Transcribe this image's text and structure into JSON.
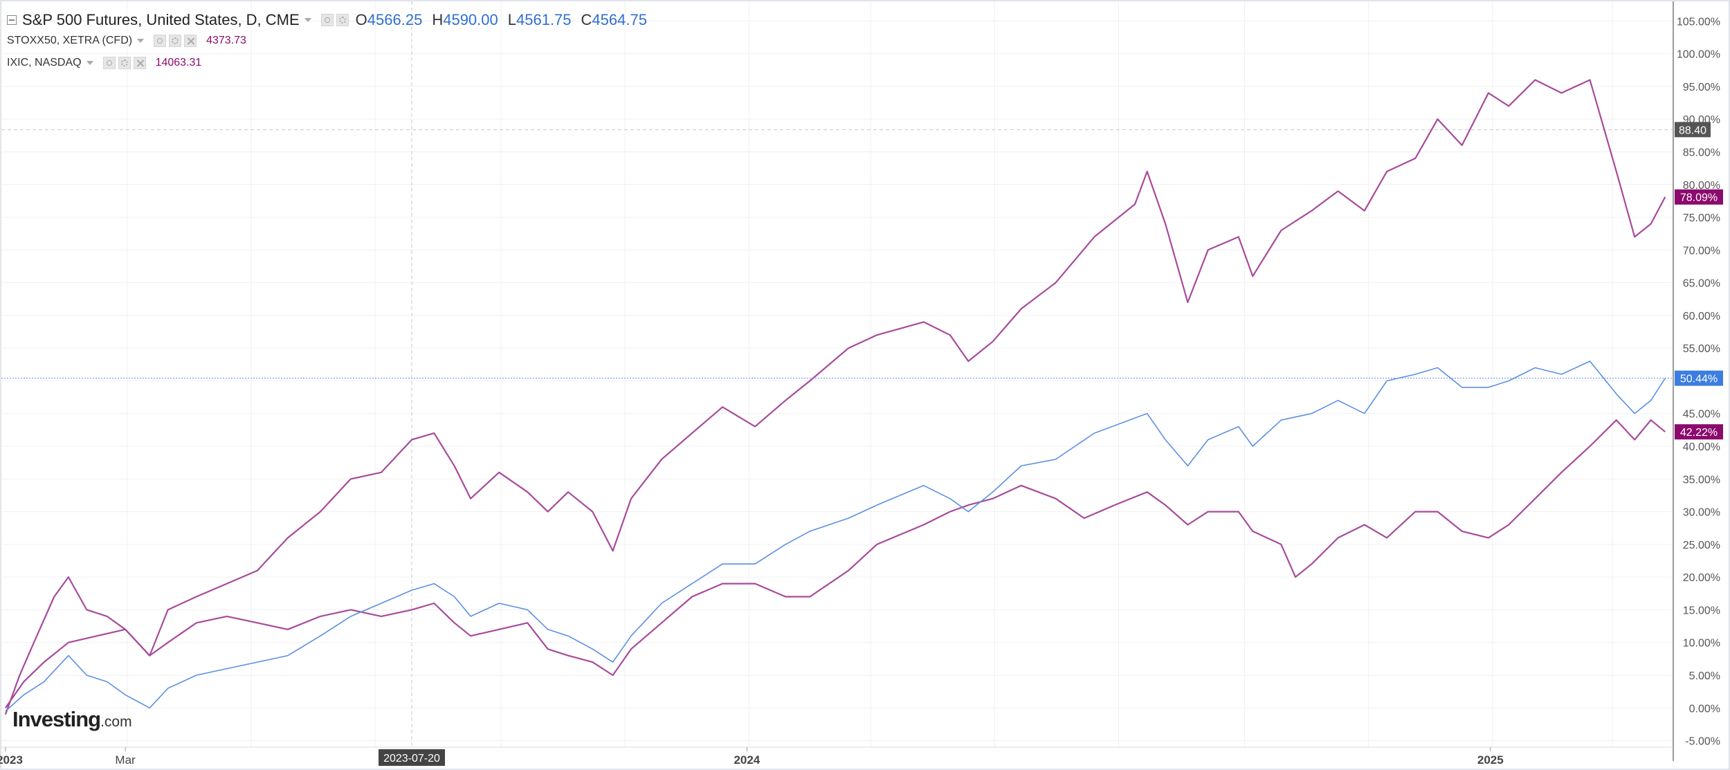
{
  "legend": {
    "main": {
      "name": "S&P 500 Futures, United States, D, CME",
      "ohlc": [
        {
          "key": "O",
          "value": "4566.25"
        },
        {
          "key": "H",
          "value": "4590.00"
        },
        {
          "key": "L",
          "value": "4561.75"
        },
        {
          "key": "C",
          "value": "4564.75"
        }
      ]
    },
    "overlays": [
      {
        "name": "STOXX50, XETRA (CFD)",
        "value": "4373.73",
        "color": "#8b0a6d"
      },
      {
        "name": "IXIC, NASDAQ",
        "value": "14063.31",
        "color": "#8b0a6d"
      }
    ]
  },
  "logo": {
    "main": "Investing",
    "suffix": ".com"
  },
  "crosshair": {
    "date_label": "2023-07-20"
  },
  "colors": {
    "main_line": "#5b8fe3",
    "compare_line": "#a74a9a",
    "badge_compare": "#8b0a6d",
    "badge_main": "#3b7de0",
    "badge_cross": "#555555",
    "grid": "#f0f0f3",
    "axis_text": "#555555"
  },
  "chart_data": {
    "type": "line",
    "x_tick_labels": [
      "2023",
      "Mar",
      "2024",
      "2025"
    ],
    "y_tick_labels": [
      "105.00%",
      "100.00%",
      "95.00%",
      "90.00%",
      "85.00%",
      "80.00%",
      "75.00%",
      "70.00%",
      "65.00%",
      "60.00%",
      "55.00%",
      "50.00%",
      "45.00%",
      "40.00%",
      "35.00%",
      "30.00%",
      "25.00%",
      "20.00%",
      "15.00%",
      "10.00%",
      "5.00%",
      "0.00%",
      "-5.00%"
    ],
    "ylim": [
      -6,
      108
    ],
    "xlim": [
      "2022-12-30",
      "2025-04-01"
    ],
    "y_unit": "%",
    "grid": true,
    "series": [
      {
        "label": "S&P 500 Futures",
        "last_value": "50.44%",
        "badge_color": "#3b7de0",
        "points": [
          [
            "2023-01-01",
            -0.5
          ],
          [
            "2023-01-10",
            2
          ],
          [
            "2023-01-20",
            4
          ],
          [
            "2023-02-01",
            8
          ],
          [
            "2023-02-10",
            5
          ],
          [
            "2023-02-20",
            4
          ],
          [
            "2023-03-01",
            2
          ],
          [
            "2023-03-13",
            0
          ],
          [
            "2023-03-22",
            3
          ],
          [
            "2023-04-05",
            5
          ],
          [
            "2023-04-20",
            6
          ],
          [
            "2023-05-05",
            7
          ],
          [
            "2023-05-20",
            8
          ],
          [
            "2023-06-05",
            11
          ],
          [
            "2023-06-20",
            14
          ],
          [
            "2023-07-05",
            16
          ],
          [
            "2023-07-20",
            18
          ],
          [
            "2023-07-31",
            19
          ],
          [
            "2023-08-10",
            17
          ],
          [
            "2023-08-18",
            14
          ],
          [
            "2023-09-01",
            16
          ],
          [
            "2023-09-15",
            15
          ],
          [
            "2023-09-25",
            12
          ],
          [
            "2023-10-05",
            11
          ],
          [
            "2023-10-17",
            9
          ],
          [
            "2023-10-27",
            7
          ],
          [
            "2023-11-05",
            11
          ],
          [
            "2023-11-20",
            16
          ],
          [
            "2023-12-05",
            19
          ],
          [
            "2023-12-20",
            22
          ],
          [
            "2024-01-05",
            22
          ],
          [
            "2024-01-20",
            25
          ],
          [
            "2024-02-01",
            27
          ],
          [
            "2024-02-20",
            29
          ],
          [
            "2024-03-05",
            31
          ],
          [
            "2024-03-28",
            34
          ],
          [
            "2024-04-10",
            32
          ],
          [
            "2024-04-19",
            30
          ],
          [
            "2024-05-01",
            33
          ],
          [
            "2024-05-15",
            37
          ],
          [
            "2024-06-01",
            38
          ],
          [
            "2024-06-20",
            42
          ],
          [
            "2024-07-16",
            45
          ],
          [
            "2024-07-25",
            41
          ],
          [
            "2024-08-05",
            37
          ],
          [
            "2024-08-15",
            41
          ],
          [
            "2024-08-30",
            43
          ],
          [
            "2024-09-06",
            40
          ],
          [
            "2024-09-20",
            44
          ],
          [
            "2024-10-05",
            45
          ],
          [
            "2024-10-18",
            47
          ],
          [
            "2024-10-31",
            45
          ],
          [
            "2024-11-11",
            50
          ],
          [
            "2024-11-25",
            51
          ],
          [
            "2024-12-06",
            52
          ],
          [
            "2024-12-18",
            49
          ],
          [
            "2024-12-31",
            49
          ],
          [
            "2025-01-10",
            50
          ],
          [
            "2025-01-23",
            52
          ],
          [
            "2025-02-05",
            51
          ],
          [
            "2025-02-19",
            53
          ],
          [
            "2025-03-04",
            48
          ],
          [
            "2025-03-13",
            45
          ],
          [
            "2025-03-21",
            47
          ],
          [
            "2025-03-28",
            50.4
          ]
        ]
      },
      {
        "label": "STOXX50, XETRA (CFD)",
        "last_value": "42.22%",
        "badge_color": "#8b0a6d",
        "points": [
          [
            "2023-01-01",
            0
          ],
          [
            "2023-01-10",
            4
          ],
          [
            "2023-01-20",
            7
          ],
          [
            "2023-02-01",
            10
          ],
          [
            "2023-02-15",
            11
          ],
          [
            "2023-03-01",
            12
          ],
          [
            "2023-03-13",
            8
          ],
          [
            "2023-03-22",
            10
          ],
          [
            "2023-04-05",
            13
          ],
          [
            "2023-04-20",
            14
          ],
          [
            "2023-05-05",
            13
          ],
          [
            "2023-05-20",
            12
          ],
          [
            "2023-06-05",
            14
          ],
          [
            "2023-06-20",
            15
          ],
          [
            "2023-07-05",
            14
          ],
          [
            "2023-07-20",
            15
          ],
          [
            "2023-07-31",
            16
          ],
          [
            "2023-08-10",
            13
          ],
          [
            "2023-08-18",
            11
          ],
          [
            "2023-09-01",
            12
          ],
          [
            "2023-09-15",
            13
          ],
          [
            "2023-09-25",
            9
          ],
          [
            "2023-10-05",
            8
          ],
          [
            "2023-10-17",
            7
          ],
          [
            "2023-10-27",
            5
          ],
          [
            "2023-11-05",
            9
          ],
          [
            "2023-11-20",
            13
          ],
          [
            "2023-12-05",
            17
          ],
          [
            "2023-12-20",
            19
          ],
          [
            "2024-01-05",
            19
          ],
          [
            "2024-01-20",
            17
          ],
          [
            "2024-02-01",
            17
          ],
          [
            "2024-02-20",
            21
          ],
          [
            "2024-03-05",
            25
          ],
          [
            "2024-03-28",
            28
          ],
          [
            "2024-04-10",
            30
          ],
          [
            "2024-04-19",
            31
          ],
          [
            "2024-05-01",
            32
          ],
          [
            "2024-05-15",
            34
          ],
          [
            "2024-06-01",
            32
          ],
          [
            "2024-06-15",
            29
          ],
          [
            "2024-06-30",
            31
          ],
          [
            "2024-07-16",
            33
          ],
          [
            "2024-07-25",
            31
          ],
          [
            "2024-08-05",
            28
          ],
          [
            "2024-08-15",
            30
          ],
          [
            "2024-08-30",
            30
          ],
          [
            "2024-09-06",
            27
          ],
          [
            "2024-09-20",
            25
          ],
          [
            "2024-09-27",
            20
          ],
          [
            "2024-10-05",
            22
          ],
          [
            "2024-10-18",
            26
          ],
          [
            "2024-10-31",
            28
          ],
          [
            "2024-11-11",
            26
          ],
          [
            "2024-11-25",
            30
          ],
          [
            "2024-12-06",
            30
          ],
          [
            "2024-12-18",
            27
          ],
          [
            "2024-12-31",
            26
          ],
          [
            "2025-01-10",
            28
          ],
          [
            "2025-01-23",
            32
          ],
          [
            "2025-02-05",
            36
          ],
          [
            "2025-02-19",
            40
          ],
          [
            "2025-03-04",
            44
          ],
          [
            "2025-03-13",
            41
          ],
          [
            "2025-03-21",
            44
          ],
          [
            "2025-03-28",
            42.2
          ]
        ]
      },
      {
        "label": "IXIC, NASDAQ",
        "last_value": "78.09%",
        "badge_color": "#8b0a6d",
        "points": [
          [
            "2023-01-01",
            -1
          ],
          [
            "2023-01-08",
            5
          ],
          [
            "2023-01-15",
            10
          ],
          [
            "2023-01-25",
            17
          ],
          [
            "2023-02-01",
            20
          ],
          [
            "2023-02-10",
            15
          ],
          [
            "2023-02-20",
            14
          ],
          [
            "2023-03-01",
            12
          ],
          [
            "2023-03-13",
            8
          ],
          [
            "2023-03-22",
            15
          ],
          [
            "2023-04-05",
            17
          ],
          [
            "2023-04-20",
            19
          ],
          [
            "2023-05-05",
            21
          ],
          [
            "2023-05-20",
            26
          ],
          [
            "2023-06-05",
            30
          ],
          [
            "2023-06-20",
            35
          ],
          [
            "2023-07-05",
            36
          ],
          [
            "2023-07-20",
            41
          ],
          [
            "2023-07-31",
            42
          ],
          [
            "2023-08-10",
            37
          ],
          [
            "2023-08-18",
            32
          ],
          [
            "2023-09-01",
            36
          ],
          [
            "2023-09-15",
            33
          ],
          [
            "2023-09-25",
            30
          ],
          [
            "2023-10-05",
            33
          ],
          [
            "2023-10-17",
            30
          ],
          [
            "2023-10-27",
            24
          ],
          [
            "2023-11-05",
            32
          ],
          [
            "2023-11-20",
            38
          ],
          [
            "2023-12-05",
            42
          ],
          [
            "2023-12-20",
            46
          ],
          [
            "2024-01-05",
            43
          ],
          [
            "2024-01-20",
            47
          ],
          [
            "2024-02-01",
            50
          ],
          [
            "2024-02-20",
            55
          ],
          [
            "2024-03-05",
            57
          ],
          [
            "2024-03-28",
            59
          ],
          [
            "2024-04-10",
            57
          ],
          [
            "2024-04-19",
            53
          ],
          [
            "2024-05-01",
            56
          ],
          [
            "2024-05-15",
            61
          ],
          [
            "2024-06-01",
            65
          ],
          [
            "2024-06-20",
            72
          ],
          [
            "2024-07-10",
            77
          ],
          [
            "2024-07-16",
            82
          ],
          [
            "2024-07-25",
            74
          ],
          [
            "2024-08-05",
            62
          ],
          [
            "2024-08-15",
            70
          ],
          [
            "2024-08-30",
            72
          ],
          [
            "2024-09-06",
            66
          ],
          [
            "2024-09-20",
            73
          ],
          [
            "2024-10-05",
            76
          ],
          [
            "2024-10-18",
            79
          ],
          [
            "2024-10-31",
            76
          ],
          [
            "2024-11-11",
            82
          ],
          [
            "2024-11-25",
            84
          ],
          [
            "2024-12-06",
            90
          ],
          [
            "2024-12-18",
            86
          ],
          [
            "2024-12-31",
            94
          ],
          [
            "2025-01-10",
            92
          ],
          [
            "2025-01-23",
            96
          ],
          [
            "2025-02-05",
            94
          ],
          [
            "2025-02-19",
            96
          ],
          [
            "2025-03-04",
            82
          ],
          [
            "2025-03-13",
            72
          ],
          [
            "2025-03-21",
            74
          ],
          [
            "2025-03-28",
            78.1
          ]
        ]
      }
    ],
    "crosshair_y_label": "88.40"
  }
}
